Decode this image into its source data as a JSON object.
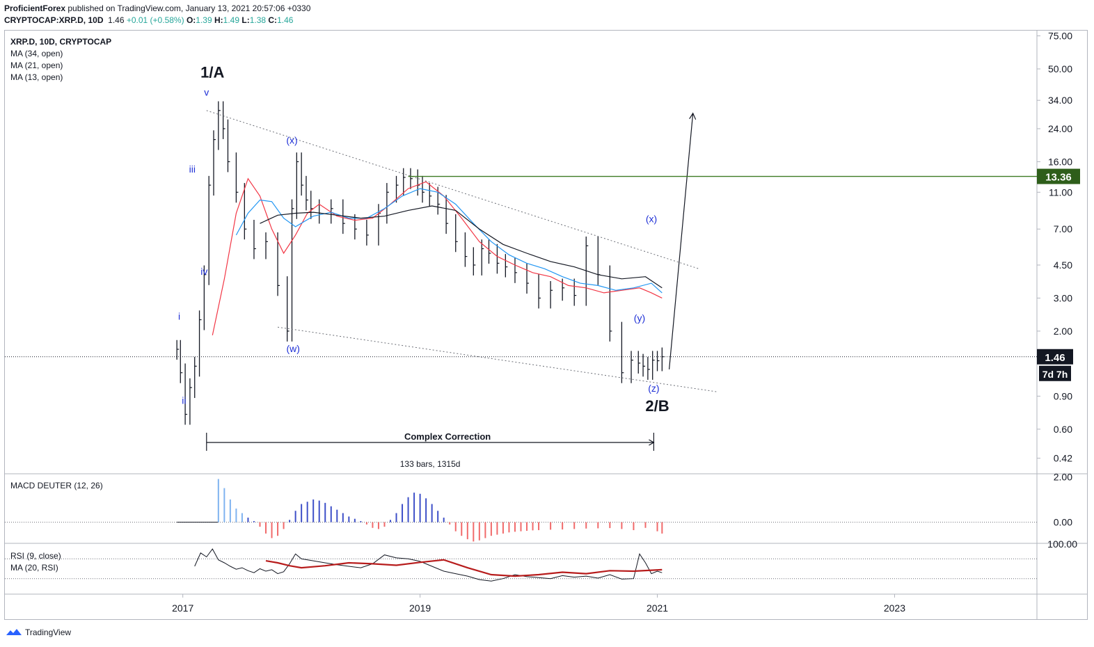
{
  "header": {
    "publisher": "ProficientForex",
    "published_line": " published on TradingView.com, January 13, 2021 20:57:06 +0330",
    "symbol_line": "CRYPTOCAP:XRP.D, 10D",
    "last": "1.46",
    "change": "+0.01 (+0.58%)",
    "o_label": "O:",
    "o": "1.39",
    "h_label": "H:",
    "h": "1.49",
    "l_label": "L:",
    "l": "1.38",
    "c_label": "C:",
    "c": "1.46"
  },
  "legend": {
    "main": [
      "XRP.D, 10D, CRYPTOCAP",
      "MA (34, open)",
      "MA (21, open)",
      "MA (13, open)"
    ],
    "macd": "MACD DEUTER (12, 26)",
    "rsi": [
      "RSI (9, close)",
      "MA (20, RSI)"
    ]
  },
  "footer": {
    "brand": "TradingView"
  },
  "chart_data": [
    {
      "type": "line",
      "title": "XRP.D, 10D, CRYPTOCAP",
      "y_scale": "log",
      "ylim": [
        0.35,
        80
      ],
      "y_ticks": [
        "75.00",
        "50.00",
        "34.00",
        "24.00",
        "16.00",
        "11.00",
        "7.00",
        "4.50",
        "3.00",
        "2.00",
        "0.90",
        "0.60",
        "0.42"
      ],
      "x_ticks": [
        "2017",
        "2019",
        "2021",
        "2023"
      ],
      "xlim": [
        2015.5,
        2024.2
      ],
      "series": [
        {
          "name": "XRP.D, 10D, CRYPTOCAP",
          "x": [
            2016.95,
            2016.98,
            2017.02,
            2017.06,
            2017.1,
            2017.14,
            2017.18,
            2017.22,
            2017.26,
            2017.3,
            2017.34,
            2017.38,
            2017.45,
            2017.52,
            2017.6,
            2017.7,
            2017.8,
            2017.88,
            2017.92,
            2017.96,
            2018.0,
            2018.04,
            2018.08,
            2018.15,
            2018.25,
            2018.35,
            2018.45,
            2018.55,
            2018.65,
            2018.72,
            2018.8,
            2018.86,
            2018.92,
            2018.98,
            2019.02,
            2019.08,
            2019.15,
            2019.22,
            2019.3,
            2019.38,
            2019.45,
            2019.52,
            2019.58,
            2019.65,
            2019.72,
            2019.8,
            2019.9,
            2020.0,
            2020.1,
            2020.2,
            2020.3,
            2020.4,
            2020.5,
            2020.6,
            2020.7,
            2020.78,
            2020.84,
            2020.88,
            2020.92,
            2020.96,
            2021.0,
            2021.04
          ],
          "y": [
            1.6,
            1.2,
            0.72,
            1.0,
            1.3,
            2.3,
            4.0,
            12.0,
            21.0,
            30.0,
            24.0,
            16.0,
            11.0,
            7.0,
            5.5,
            6.0,
            3.5,
            2.0,
            9.0,
            16.0,
            12.0,
            10.0,
            9.0,
            8.5,
            9.0,
            7.5,
            7.0,
            6.5,
            8.5,
            11.0,
            12.0,
            13.2,
            13.0,
            12.0,
            11.0,
            10.5,
            9.5,
            7.5,
            6.0,
            5.0,
            4.5,
            5.5,
            5.2,
            4.6,
            4.4,
            4.1,
            3.6,
            3.0,
            3.3,
            3.4,
            3.1,
            5.7,
            4.0,
            2.0,
            1.2,
            1.4,
            1.35,
            1.3,
            1.25,
            1.4,
            1.39,
            1.46
          ]
        },
        {
          "name": "MA (13, open)",
          "color": "#f23645",
          "x": [
            2017.25,
            2017.35,
            2017.45,
            2017.55,
            2017.65,
            2017.75,
            2017.85,
            2017.95,
            2018.05,
            2018.15,
            2018.3,
            2018.45,
            2018.6,
            2018.75,
            2018.9,
            2019.05,
            2019.2,
            2019.35,
            2019.5,
            2019.65,
            2019.8,
            2019.95,
            2020.1,
            2020.25,
            2020.4,
            2020.55,
            2020.7,
            2020.85,
            2020.95,
            2021.04
          ],
          "y": [
            1.9,
            3.8,
            8.5,
            13.0,
            10.5,
            7.0,
            5.2,
            6.5,
            8.5,
            9.5,
            8.2,
            7.8,
            8.0,
            9.5,
            11.5,
            12.5,
            10.5,
            8.0,
            6.0,
            5.0,
            4.5,
            4.1,
            3.9,
            3.5,
            3.4,
            3.2,
            3.3,
            3.4,
            3.2,
            3.0
          ]
        },
        {
          "name": "MA (21, open)",
          "color": "#2196f3",
          "x": [
            2017.45,
            2017.55,
            2017.65,
            2017.75,
            2017.85,
            2017.95,
            2018.1,
            2018.25,
            2018.4,
            2018.55,
            2018.7,
            2018.85,
            2019.0,
            2019.15,
            2019.3,
            2019.45,
            2019.6,
            2019.75,
            2019.9,
            2020.05,
            2020.2,
            2020.35,
            2020.5,
            2020.65,
            2020.8,
            2020.95,
            2021.04
          ],
          "y": [
            6.5,
            8.5,
            10.0,
            9.8,
            8.0,
            7.2,
            8.2,
            8.6,
            8.0,
            8.0,
            9.0,
            10.5,
            11.5,
            11.0,
            9.5,
            7.5,
            6.0,
            5.1,
            4.6,
            4.3,
            3.9,
            3.6,
            3.5,
            3.3,
            3.4,
            3.6,
            3.2
          ]
        },
        {
          "name": "MA (34, open)",
          "color": "#131722",
          "x": [
            2017.65,
            2017.8,
            2017.95,
            2018.1,
            2018.3,
            2018.5,
            2018.7,
            2018.9,
            2019.1,
            2019.3,
            2019.5,
            2019.7,
            2019.9,
            2020.1,
            2020.3,
            2020.5,
            2020.7,
            2020.9,
            2021.04
          ],
          "y": [
            7.5,
            8.3,
            8.5,
            8.6,
            8.3,
            8.0,
            8.2,
            8.8,
            9.3,
            8.8,
            7.0,
            5.8,
            5.2,
            4.7,
            4.4,
            4.0,
            3.8,
            3.9,
            3.4
          ]
        }
      ],
      "price_label": "1.46",
      "countdown_label": "7d 7h",
      "horizontal_level": {
        "value": 13.36,
        "label": "13.36",
        "color": "#2e5e1a"
      },
      "wave_labels": [
        {
          "text": "1/A",
          "x": 2017.25,
          "y": 45.0,
          "big": true
        },
        {
          "text": "v",
          "x": 2017.2,
          "y": 36.0
        },
        {
          "text": "iii",
          "x": 2017.08,
          "y": 14.0
        },
        {
          "text": "iv",
          "x": 2017.18,
          "y": 4.0
        },
        {
          "text": "i",
          "x": 2016.97,
          "y": 2.3
        },
        {
          "text": "ii",
          "x": 2017.01,
          "y": 0.82
        },
        {
          "text": "(x)",
          "x": 2017.92,
          "y": 20.0
        },
        {
          "text": "(w)",
          "x": 2017.93,
          "y": 1.55
        },
        {
          "text": "(x)",
          "x": 2020.95,
          "y": 7.6
        },
        {
          "text": "(y)",
          "x": 2020.85,
          "y": 2.25
        },
        {
          "text": "(z)",
          "x": 2020.97,
          "y": 0.95
        },
        {
          "text": "2/B",
          "x": 2021.0,
          "y": 0.75,
          "big": true
        }
      ],
      "annotation": {
        "text": "Complex Correction",
        "sub": "133 bars, 1315d",
        "x_start": 2017.2,
        "x_end": 2020.97
      }
    },
    {
      "type": "bar",
      "title": "MACD DEUTER (12, 26)",
      "y_ticks": [
        "2.00",
        "0.00"
      ],
      "ylim": [
        -0.9,
        2.1
      ],
      "series": [
        {
          "name": "MACD DEUTER (12, 26)",
          "x": [
            2017.3,
            2017.35,
            2017.4,
            2017.45,
            2017.5,
            2017.55,
            2017.6,
            2017.65,
            2017.7,
            2017.75,
            2017.8,
            2017.85,
            2017.9,
            2017.95,
            2018.0,
            2018.05,
            2018.1,
            2018.15,
            2018.2,
            2018.25,
            2018.3,
            2018.35,
            2018.4,
            2018.45,
            2018.5,
            2018.55,
            2018.6,
            2018.65,
            2018.7,
            2018.75,
            2018.8,
            2018.85,
            2018.9,
            2018.95,
            2019.0,
            2019.05,
            2019.1,
            2019.15,
            2019.2,
            2019.25,
            2019.3,
            2019.35,
            2019.4,
            2019.45,
            2019.5,
            2019.55,
            2019.6,
            2019.65,
            2019.7,
            2019.75,
            2019.8,
            2019.85,
            2019.9,
            2019.95,
            2020.0,
            2020.1,
            2020.2,
            2020.3,
            2020.4,
            2020.5,
            2020.6,
            2020.7,
            2020.8,
            2020.9,
            2021.0,
            2021.04
          ],
          "y": [
            1.9,
            1.5,
            1.0,
            0.6,
            0.4,
            0.2,
            0.05,
            -0.2,
            -0.5,
            -0.7,
            -0.6,
            -0.3,
            0.1,
            0.5,
            0.8,
            0.9,
            1.0,
            0.95,
            0.85,
            0.7,
            0.55,
            0.4,
            0.25,
            0.15,
            0.05,
            -0.1,
            -0.25,
            -0.3,
            -0.2,
            0.1,
            0.4,
            0.8,
            1.1,
            1.3,
            1.25,
            1.05,
            0.8,
            0.5,
            0.2,
            -0.1,
            -0.4,
            -0.6,
            -0.75,
            -0.85,
            -0.8,
            -0.7,
            -0.6,
            -0.55,
            -0.5,
            -0.45,
            -0.42,
            -0.4,
            -0.38,
            -0.36,
            -0.35,
            -0.33,
            -0.32,
            -0.3,
            -0.28,
            -0.27,
            -0.26,
            -0.3,
            -0.35,
            -0.25,
            -0.4,
            -0.5
          ]
        }
      ]
    },
    {
      "type": "line",
      "title": "RSI (9, close)",
      "y_ticks": [
        "100.00"
      ],
      "ylim": [
        0,
        100
      ],
      "series": [
        {
          "name": "RSI (9, close)",
          "x": [
            2017.1,
            2017.15,
            2017.2,
            2017.25,
            2017.3,
            2017.35,
            2017.4,
            2017.45,
            2017.5,
            2017.55,
            2017.6,
            2017.65,
            2017.7,
            2017.75,
            2017.8,
            2017.85,
            2017.9,
            2017.95,
            2018.0,
            2018.1,
            2018.2,
            2018.3,
            2018.4,
            2018.5,
            2018.6,
            2018.7,
            2018.8,
            2018.9,
            2019.0,
            2019.1,
            2019.2,
            2019.3,
            2019.4,
            2019.5,
            2019.6,
            2019.7,
            2019.8,
            2019.9,
            2020.0,
            2020.1,
            2020.2,
            2020.3,
            2020.4,
            2020.5,
            2020.6,
            2020.7,
            2020.8,
            2020.85,
            2020.9,
            2020.95,
            2021.0,
            2021.04
          ],
          "y": [
            55,
            82,
            74,
            90,
            68,
            62,
            55,
            49,
            52,
            46,
            42,
            50,
            45,
            48,
            40,
            44,
            60,
            80,
            70,
            66,
            62,
            58,
            55,
            52,
            60,
            78,
            72,
            70,
            65,
            55,
            45,
            40,
            35,
            28,
            25,
            30,
            38,
            34,
            32,
            30,
            36,
            33,
            35,
            31,
            38,
            29,
            30,
            80,
            62,
            40,
            45,
            42
          ]
        },
        {
          "name": "MA (20, RSI)",
          "color": "#b71c1c",
          "x": [
            2017.7,
            2017.8,
            2017.9,
            2018.0,
            2018.2,
            2018.4,
            2018.6,
            2018.8,
            2019.0,
            2019.2,
            2019.4,
            2019.6,
            2019.8,
            2020.0,
            2020.2,
            2020.4,
            2020.6,
            2020.8,
            2021.04
          ],
          "y": [
            66,
            62,
            56,
            52,
            56,
            62,
            60,
            57,
            63,
            68,
            52,
            38,
            35,
            38,
            43,
            40,
            46,
            45,
            48
          ]
        }
      ]
    }
  ]
}
